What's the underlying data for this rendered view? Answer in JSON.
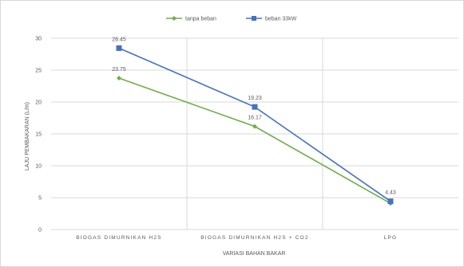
{
  "chart_data": {
    "type": "line",
    "categories": [
      "BIOGAS DIMURNIKAN H2S",
      "BIOGAS DIMURNIKAN H2S + CO2",
      "LPG"
    ],
    "series": [
      {
        "name": "tanpa beban",
        "values": [
          23.75,
          16.17,
          4.1
        ],
        "color": "#70AD47",
        "marker": "diamond",
        "labels": [
          "23.75",
          "16.17",
          ""
        ]
      },
      {
        "name": "beban 33kW",
        "values": [
          28.45,
          19.23,
          4.43
        ],
        "color": "#4472C4",
        "marker": "square",
        "labels": [
          "28.45",
          "19.23",
          "4.43"
        ]
      }
    ],
    "xlabel": "VARIASI BAHAN BAKAR",
    "ylabel": "LAJU PEMBAKARAN (L/m)",
    "ylim": [
      0,
      30
    ],
    "yticks": [
      0,
      5,
      10,
      15,
      20,
      25,
      30
    ],
    "grid": true,
    "legend_position": "top"
  }
}
